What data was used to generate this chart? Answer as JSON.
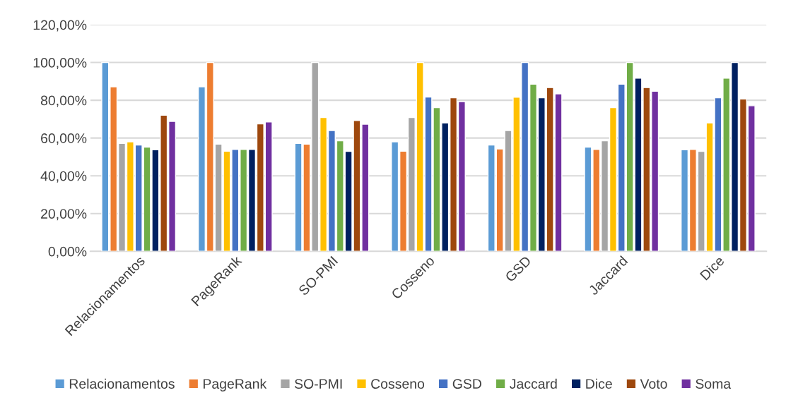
{
  "chart_data": {
    "type": "bar",
    "categories": [
      "Relacionamentos",
      "PageRank",
      "SO-PMI",
      "Cosseno",
      "GSD",
      "Jaccard",
      "Dice"
    ],
    "series": [
      {
        "name": "Relacionamentos",
        "color": "#5b9bd5",
        "values": [
          100,
          87.1,
          57.1,
          58.0,
          56.3,
          55.2,
          53.8
        ]
      },
      {
        "name": "PageRank",
        "color": "#ed7d31",
        "values": [
          87.1,
          100,
          56.8,
          53.0,
          54.2,
          54.0,
          54.0
        ]
      },
      {
        "name": "SO-PMI",
        "color": "#a5a5a5",
        "values": [
          57.1,
          56.8,
          100,
          70.9,
          64.0,
          58.5,
          52.9
        ]
      },
      {
        "name": "Cosseno",
        "color": "#ffc000",
        "values": [
          58.0,
          53.0,
          70.9,
          100,
          81.6,
          76.1,
          68.0
        ]
      },
      {
        "name": "GSD",
        "color": "#4472c4",
        "values": [
          56.3,
          54.0,
          64.0,
          81.7,
          100,
          88.5,
          81.3
        ]
      },
      {
        "name": "Jaccard",
        "color": "#70ad47",
        "values": [
          55.2,
          54.0,
          58.5,
          76.1,
          88.5,
          100,
          91.7
        ]
      },
      {
        "name": "Dice",
        "color": "#002060",
        "values": [
          53.8,
          54.0,
          52.9,
          68.0,
          81.3,
          91.7,
          100
        ]
      },
      {
        "name": "Voto",
        "color": "#9e480e",
        "values": [
          72.1,
          67.5,
          69.3,
          81.3,
          86.7,
          86.7,
          80.7
        ]
      },
      {
        "name": "Soma",
        "color": "#7030a0",
        "values": [
          68.8,
          68.5,
          67.3,
          79.3,
          83.4,
          84.8,
          77.1
        ]
      }
    ],
    "ylim": [
      0,
      120
    ],
    "yticks": [
      {
        "value": 0,
        "label": "0,00%"
      },
      {
        "value": 20,
        "label": "20,00%"
      },
      {
        "value": 40,
        "label": "40,00%"
      },
      {
        "value": 60,
        "label": "60,00%"
      },
      {
        "value": 80,
        "label": "80,00%"
      },
      {
        "value": 100,
        "label": "100,00%"
      },
      {
        "value": 120,
        "label": "120,00%"
      }
    ],
    "grid": "y",
    "legend": "bottom"
  }
}
